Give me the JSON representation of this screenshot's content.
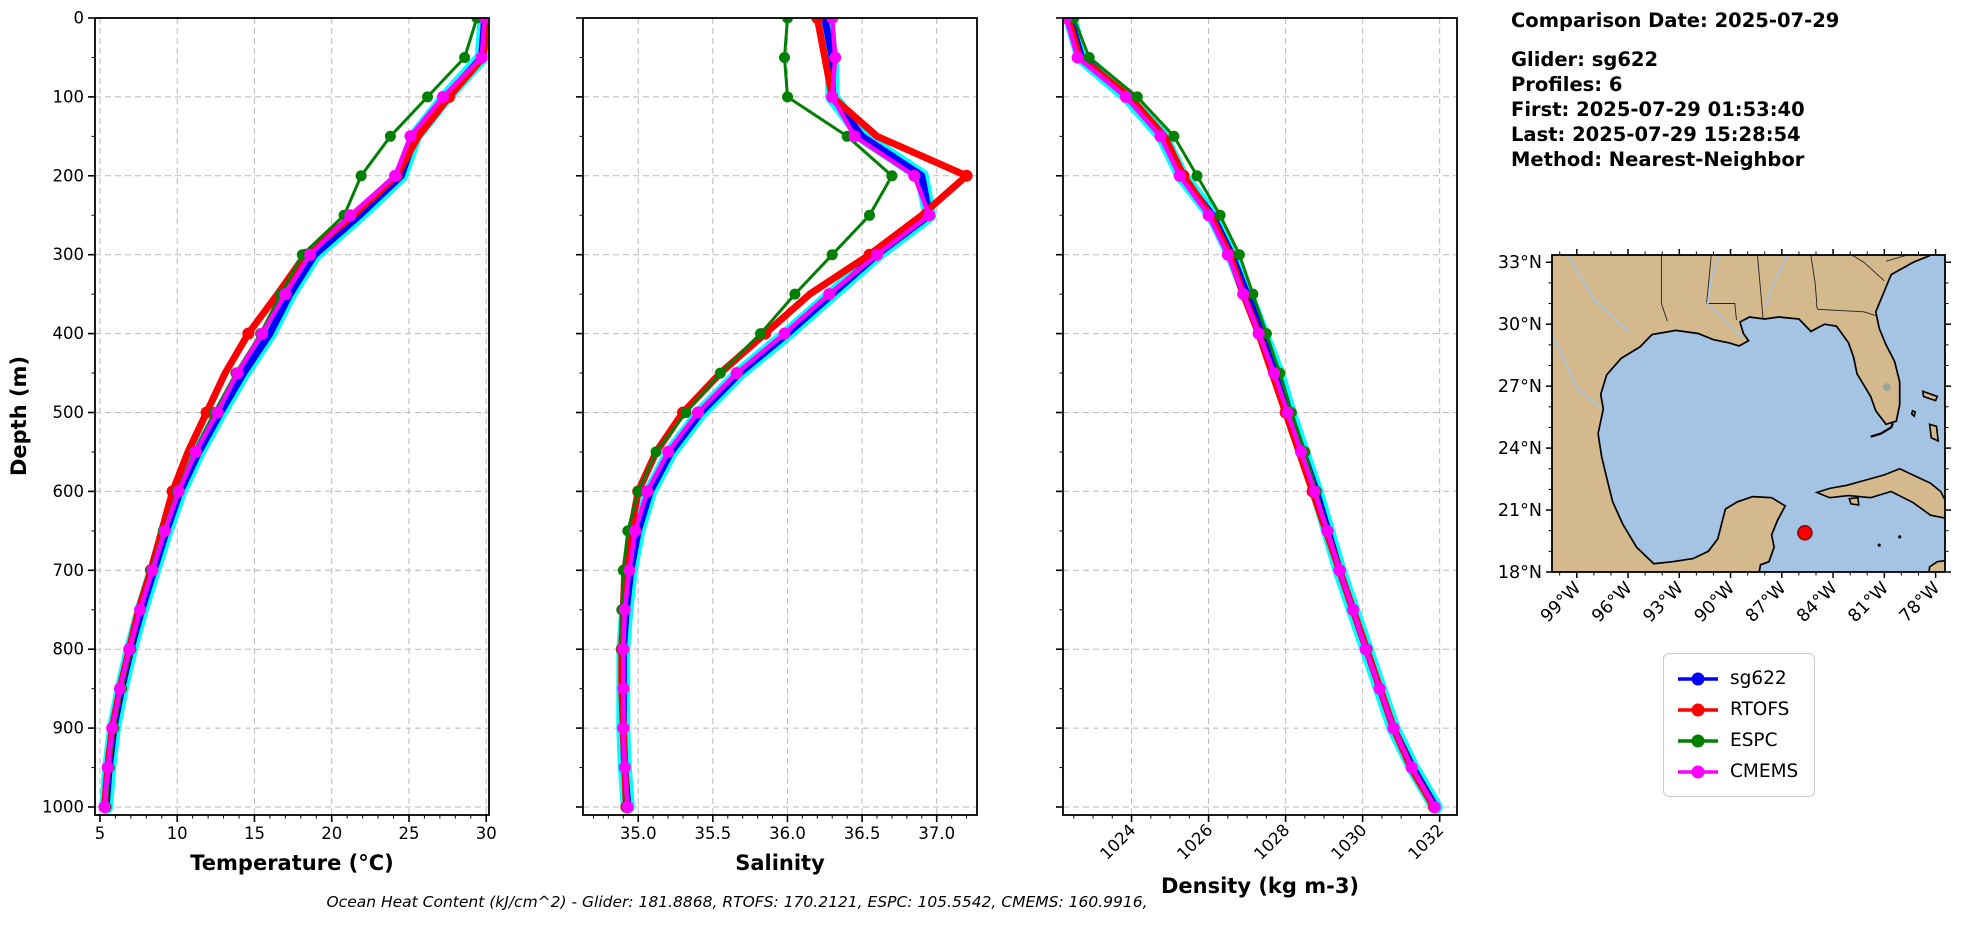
{
  "info": {
    "title": "Comparison Date: 2025-07-29",
    "lines": [
      "Glider: sg622",
      "Profiles: 6",
      "First: 2025-07-29 01:53:40",
      "Last: 2025-07-29 15:28:54",
      "Method: Nearest-Neighbor"
    ]
  },
  "caption": "Ocean Heat Content (kJ/cm^2) - Glider: 181.8868,  RTOFS: 170.2121,  ESPC: 105.5542,  CMEMS: 160.9916,",
  "ohc": {
    "label": "Ocean Heat Content (kJ/cm^2)",
    "glider": "181.8868",
    "rtofs": "170.2121",
    "espc": "105.5542",
    "cmems": "160.9916"
  },
  "legend": {
    "entries": [
      {
        "label": "sg622",
        "color": "#0000ff"
      },
      {
        "label": "RTOFS",
        "color": "#ff0000"
      },
      {
        "label": "ESPC",
        "color": "#008000"
      },
      {
        "label": "CMEMS",
        "color": "#ff00ff"
      }
    ]
  },
  "chart_data": {
    "type": "line",
    "description": "Vertical ocean profiles, depth increases downward, grid dashed",
    "ylabel": "Depth (m)",
    "ylim": [
      0,
      1000
    ],
    "yticks": [
      0,
      100,
      200,
      300,
      400,
      500,
      600,
      700,
      800,
      900,
      1000
    ],
    "depths": [
      0,
      50,
      100,
      150,
      200,
      250,
      300,
      350,
      400,
      450,
      500,
      550,
      600,
      650,
      700,
      750,
      800,
      850,
      900,
      950,
      1000
    ],
    "draw_order": [
      "sg622",
      "RTOFS",
      "ESPC",
      "CMEMS"
    ],
    "series_meta": [
      {
        "name": "sg622",
        "color": "#0000ff",
        "halo": "#00ffff",
        "line_width": 7,
        "halo_width": 14,
        "markers": false,
        "marker_every": 0,
        "marker_r": 0
      },
      {
        "name": "RTOFS",
        "color": "#ff0000",
        "line_width": 7,
        "markers": true,
        "marker_every": 100,
        "marker_r": 6
      },
      {
        "name": "ESPC",
        "color": "#008000",
        "line_width": 3,
        "markers": true,
        "marker_every": 50,
        "marker_r": 5.5
      },
      {
        "name": "CMEMS",
        "color": "#ff00ff",
        "line_width": 4.5,
        "markers": true,
        "marker_every": 50,
        "marker_r": 6
      }
    ],
    "panels": [
      {
        "id": "temperature",
        "xlabel": "Temperature (°C)",
        "xlim": [
          4.68,
          30.18
        ],
        "xticks": [
          5,
          10,
          15,
          20,
          25,
          30
        ],
        "xtick_labels": [
          "5",
          "10",
          "15",
          "20",
          "25",
          "30"
        ],
        "minor_step": 1,
        "tick_rotation": 0,
        "series": {
          "sg622": [
            29.9,
            29.7,
            27.4,
            25.4,
            24.5,
            21.8,
            18.9,
            17.3,
            16.0,
            14.3,
            12.8,
            11.4,
            10.2,
            9.3,
            8.5,
            7.7,
            7.0,
            6.4,
            5.9,
            5.6,
            5.4
          ],
          "RTOFS": [
            30.1,
            29.8,
            27.6,
            25.6,
            24.2,
            21.4,
            18.3,
            16.5,
            14.6,
            13.1,
            11.9,
            10.7,
            9.7,
            9.0,
            8.3,
            7.5,
            6.9,
            6.3,
            5.8,
            5.5,
            5.3
          ],
          "ESPC": [
            29.4,
            28.6,
            26.2,
            23.8,
            21.9,
            20.8,
            18.1,
            16.7,
            15.4,
            13.8,
            12.4,
            11.1,
            10.0,
            9.1,
            8.3,
            7.6,
            7.0,
            6.4,
            5.9,
            5.6,
            5.4
          ],
          "CMEMS": [
            29.9,
            29.7,
            27.2,
            25.1,
            24.1,
            21.2,
            18.6,
            17.0,
            15.5,
            13.9,
            12.6,
            11.2,
            10.1,
            9.2,
            8.4,
            7.6,
            6.9,
            6.3,
            5.8,
            5.5,
            5.3
          ]
        }
      },
      {
        "id": "salinity",
        "xlabel": "Salinity",
        "xlim": [
          34.63,
          37.27
        ],
        "xticks": [
          35.0,
          35.5,
          36.0,
          36.5,
          37.0
        ],
        "xtick_labels": [
          "35.0",
          "35.5",
          "36.0",
          "36.5",
          "37.0"
        ],
        "minor_step": 0.1,
        "tick_rotation": 0,
        "series": {
          "sg622": [
            36.25,
            36.3,
            36.3,
            36.5,
            36.9,
            36.95,
            36.6,
            36.3,
            36.0,
            35.68,
            35.42,
            35.22,
            35.08,
            35.0,
            34.95,
            34.92,
            34.9,
            34.9,
            34.9,
            34.91,
            34.93
          ],
          "RTOFS": [
            36.2,
            36.25,
            36.3,
            36.6,
            37.2,
            36.9,
            36.55,
            36.15,
            35.85,
            35.55,
            35.3,
            35.12,
            35.0,
            34.95,
            34.91,
            34.9,
            34.89,
            34.89,
            34.9,
            34.91,
            34.92
          ],
          "ESPC": [
            36.0,
            35.98,
            36.0,
            36.4,
            36.7,
            36.55,
            36.3,
            36.05,
            35.82,
            35.55,
            35.32,
            35.12,
            35.0,
            34.93,
            34.9,
            34.89,
            34.89,
            34.9,
            34.9,
            34.91,
            34.92
          ],
          "CMEMS": [
            36.3,
            36.32,
            36.3,
            36.45,
            36.85,
            36.95,
            36.6,
            36.28,
            35.98,
            35.66,
            35.4,
            35.2,
            35.06,
            34.98,
            34.94,
            34.91,
            34.9,
            34.9,
            34.9,
            34.91,
            34.93
          ]
        }
      },
      {
        "id": "density",
        "xlabel": "Density (kg m-3)",
        "xlim": [
          1022.22,
          1032.45
        ],
        "xticks": [
          1024,
          1026,
          1028,
          1030,
          1032
        ],
        "xtick_labels": [
          "1024",
          "1026",
          "1028",
          "1030",
          "1032"
        ],
        "minor_step": 0.5,
        "tick_rotation": 45,
        "series": {
          "sg622": [
            1022.4,
            1022.7,
            1023.9,
            1024.8,
            1025.3,
            1026.1,
            1026.6,
            1027.0,
            1027.4,
            1027.8,
            1028.1,
            1028.45,
            1028.8,
            1029.1,
            1029.4,
            1029.75,
            1030.1,
            1030.45,
            1030.8,
            1031.3,
            1031.9
          ],
          "RTOFS": [
            1022.35,
            1022.65,
            1023.95,
            1024.85,
            1025.35,
            1026.05,
            1026.55,
            1026.9,
            1027.3,
            1027.65,
            1028.0,
            1028.35,
            1028.7,
            1029.05,
            1029.4,
            1029.75,
            1030.1,
            1030.45,
            1030.8,
            1031.25,
            1031.85
          ],
          "ESPC": [
            1022.5,
            1022.9,
            1024.15,
            1025.1,
            1025.7,
            1026.3,
            1026.8,
            1027.15,
            1027.5,
            1027.85,
            1028.15,
            1028.5,
            1028.8,
            1029.1,
            1029.42,
            1029.76,
            1030.1,
            1030.45,
            1030.8,
            1031.28,
            1031.86
          ],
          "CMEMS": [
            1022.3,
            1022.6,
            1023.85,
            1024.75,
            1025.25,
            1026.0,
            1026.5,
            1026.9,
            1027.3,
            1027.7,
            1028.05,
            1028.4,
            1028.75,
            1029.08,
            1029.4,
            1029.75,
            1030.08,
            1030.44,
            1030.8,
            1031.27,
            1031.87
          ]
        }
      }
    ]
  },
  "map": {
    "lat_tick_labels": [
      "33°N",
      "30°N",
      "27°N",
      "24°N",
      "21°N",
      "18°N"
    ],
    "lat_ticks": [
      33,
      30,
      27,
      24,
      21,
      18
    ],
    "lon_tick_labels": [
      "99°W",
      "96°W",
      "93°W",
      "90°W",
      "87°W",
      "84°W",
      "81°W",
      "78°W"
    ],
    "lon_ticks": [
      -99,
      -96,
      -93,
      -90,
      -87,
      -84,
      -81,
      -78
    ],
    "marker": {
      "lon": -85.65,
      "lat": 19.9,
      "color": "#ff0000",
      "edge": "#7a0000"
    },
    "land_color": "#d3b98c",
    "water_color": "#a5c3e3",
    "river_color": "#a8c6e8",
    "lake_color": "#9aa5a0"
  }
}
